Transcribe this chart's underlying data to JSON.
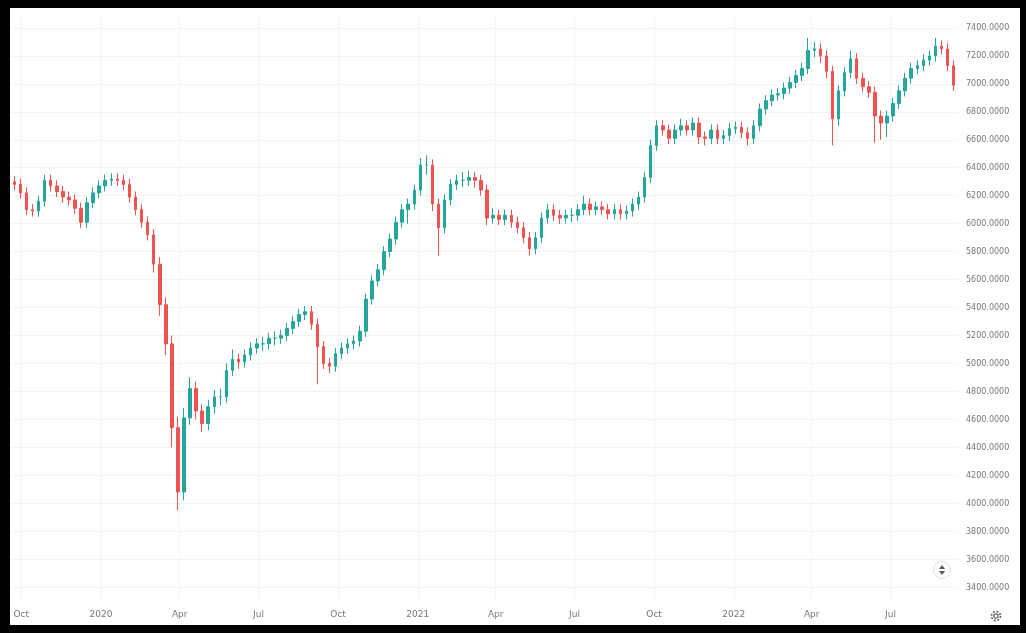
{
  "chart_data": {
    "type": "candlestick",
    "x": [
      "2019-09-23",
      "2019-09-30",
      "2019-10-07",
      "2019-10-14",
      "2019-10-21",
      "2019-10-28",
      "2019-11-04",
      "2019-11-11",
      "2019-11-18",
      "2019-11-25",
      "2019-12-02",
      "2019-12-09",
      "2019-12-16",
      "2019-12-23",
      "2019-12-30",
      "2020-01-06",
      "2020-01-13",
      "2020-01-20",
      "2020-01-27",
      "2020-02-03",
      "2020-02-10",
      "2020-02-17",
      "2020-02-24",
      "2020-03-02",
      "2020-03-09",
      "2020-03-16",
      "2020-03-23",
      "2020-03-30",
      "2020-04-06",
      "2020-04-13",
      "2020-04-20",
      "2020-04-27",
      "2020-05-04",
      "2020-05-11",
      "2020-05-18",
      "2020-05-25",
      "2020-06-01",
      "2020-06-08",
      "2020-06-15",
      "2020-06-22",
      "2020-06-29",
      "2020-07-06",
      "2020-07-13",
      "2020-07-20",
      "2020-07-27",
      "2020-08-03",
      "2020-08-10",
      "2020-08-17",
      "2020-08-24",
      "2020-08-31",
      "2020-09-07",
      "2020-09-14",
      "2020-09-21",
      "2020-09-28",
      "2020-10-05",
      "2020-10-12",
      "2020-10-19",
      "2020-10-26",
      "2020-11-02",
      "2020-11-09",
      "2020-11-16",
      "2020-11-23",
      "2020-11-30",
      "2020-12-07",
      "2020-12-14",
      "2020-12-21",
      "2020-12-28",
      "2021-01-04",
      "2021-01-11",
      "2021-01-18",
      "2021-01-25",
      "2021-02-01",
      "2021-02-08",
      "2021-02-15",
      "2021-02-22",
      "2021-03-01",
      "2021-03-08",
      "2021-03-15",
      "2021-03-22",
      "2021-03-29",
      "2021-04-05",
      "2021-04-12",
      "2021-04-19",
      "2021-04-26",
      "2021-05-03",
      "2021-05-10",
      "2021-05-17",
      "2021-05-24",
      "2021-05-31",
      "2021-06-07",
      "2021-06-14",
      "2021-06-21",
      "2021-06-28",
      "2021-07-05",
      "2021-07-12",
      "2021-07-19",
      "2021-07-26",
      "2021-08-02",
      "2021-08-09",
      "2021-08-16",
      "2021-08-23",
      "2021-08-30",
      "2021-09-06",
      "2021-09-13",
      "2021-09-20",
      "2021-09-27",
      "2021-10-04",
      "2021-10-11",
      "2021-10-18",
      "2021-10-25",
      "2021-11-01",
      "2021-11-08",
      "2021-11-15",
      "2021-11-22",
      "2021-11-29",
      "2021-12-06",
      "2021-12-13",
      "2021-12-20",
      "2021-12-27",
      "2022-01-03",
      "2022-01-10",
      "2022-01-17",
      "2022-01-24",
      "2022-01-31",
      "2022-02-07",
      "2022-02-14",
      "2022-02-21",
      "2022-02-28",
      "2022-03-07",
      "2022-03-14",
      "2022-03-21",
      "2022-03-28",
      "2022-04-04",
      "2022-04-11",
      "2022-04-18",
      "2022-04-25",
      "2022-05-02",
      "2022-05-09",
      "2022-05-16",
      "2022-05-23",
      "2022-05-30",
      "2022-06-06",
      "2022-06-13",
      "2022-06-20",
      "2022-06-27",
      "2022-07-04",
      "2022-07-11",
      "2022-07-18",
      "2022-07-25",
      "2022-08-01",
      "2022-08-08",
      "2022-08-15",
      "2022-08-22",
      "2022-08-29",
      "2022-09-05",
      "2022-09-12"
    ],
    "ohlc": [
      [
        6300,
        6340,
        6240,
        6280
      ],
      [
        6280,
        6320,
        6180,
        6220
      ],
      [
        6220,
        6260,
        6060,
        6100
      ],
      [
        6100,
        6140,
        6050,
        6090
      ],
      [
        6090,
        6200,
        6050,
        6160
      ],
      [
        6160,
        6350,
        6120,
        6310
      ],
      [
        6310,
        6350,
        6230,
        6270
      ],
      [
        6270,
        6310,
        6190,
        6230
      ],
      [
        6230,
        6270,
        6150,
        6190
      ],
      [
        6190,
        6230,
        6130,
        6170
      ],
      [
        6170,
        6210,
        6070,
        6110
      ],
      [
        6110,
        6150,
        5970,
        6010
      ],
      [
        6010,
        6190,
        5970,
        6150
      ],
      [
        6150,
        6260,
        6110,
        6220
      ],
      [
        6220,
        6310,
        6180,
        6270
      ],
      [
        6270,
        6350,
        6230,
        6310
      ],
      [
        6310,
        6360,
        6270,
        6320
      ],
      [
        6320,
        6360,
        6270,
        6310
      ],
      [
        6310,
        6350,
        6240,
        6280
      ],
      [
        6280,
        6320,
        6150,
        6190
      ],
      [
        6190,
        6230,
        6060,
        6100
      ],
      [
        6100,
        6140,
        5970,
        6010
      ],
      [
        6010,
        6050,
        5880,
        5920
      ],
      [
        5920,
        5960,
        5650,
        5710
      ],
      [
        5710,
        5760,
        5340,
        5420
      ],
      [
        5420,
        5470,
        5060,
        5140
      ],
      [
        5140,
        5200,
        4400,
        4540
      ],
      [
        4540,
        4620,
        3950,
        4080
      ],
      [
        4080,
        4680,
        4020,
        4610
      ],
      [
        4610,
        4900,
        4560,
        4820
      ],
      [
        4820,
        4870,
        4600,
        4660
      ],
      [
        4660,
        4710,
        4510,
        4570
      ],
      [
        4570,
        4740,
        4520,
        4690
      ],
      [
        4690,
        4810,
        4640,
        4760
      ],
      [
        4760,
        4820,
        4700,
        4760
      ],
      [
        4760,
        5000,
        4720,
        4950
      ],
      [
        4950,
        5100,
        4910,
        5030
      ],
      [
        5030,
        5070,
        4960,
        5010
      ],
      [
        5010,
        5100,
        4970,
        5060
      ],
      [
        5060,
        5150,
        5020,
        5110
      ],
      [
        5110,
        5180,
        5070,
        5140
      ],
      [
        5140,
        5190,
        5090,
        5140
      ],
      [
        5140,
        5220,
        5100,
        5180
      ],
      [
        5180,
        5230,
        5130,
        5180
      ],
      [
        5180,
        5240,
        5140,
        5200
      ],
      [
        5200,
        5290,
        5160,
        5250
      ],
      [
        5250,
        5340,
        5210,
        5300
      ],
      [
        5300,
        5390,
        5260,
        5350
      ],
      [
        5350,
        5410,
        5310,
        5370
      ],
      [
        5370,
        5410,
        5240,
        5280
      ],
      [
        5280,
        5320,
        4850,
        5120
      ],
      [
        5120,
        5160,
        4960,
        5000
      ],
      [
        5000,
        5040,
        4930,
        4980
      ],
      [
        4980,
        5110,
        4940,
        5070
      ],
      [
        5070,
        5150,
        5030,
        5110
      ],
      [
        5110,
        5180,
        5070,
        5140
      ],
      [
        5140,
        5200,
        5100,
        5160
      ],
      [
        5160,
        5270,
        5120,
        5230
      ],
      [
        5230,
        5500,
        5190,
        5460
      ],
      [
        5460,
        5630,
        5420,
        5590
      ],
      [
        5590,
        5710,
        5550,
        5670
      ],
      [
        5670,
        5840,
        5630,
        5800
      ],
      [
        5800,
        5930,
        5760,
        5890
      ],
      [
        5890,
        6050,
        5850,
        6010
      ],
      [
        6010,
        6140,
        5970,
        6100
      ],
      [
        6100,
        6180,
        6000,
        6140
      ],
      [
        6140,
        6280,
        6100,
        6240
      ],
      [
        6240,
        6470,
        6200,
        6420
      ],
      [
        6420,
        6490,
        6350,
        6420
      ],
      [
        6420,
        6460,
        6090,
        6140
      ],
      [
        6140,
        6180,
        5770,
        5970
      ],
      [
        5970,
        6210,
        5930,
        6170
      ],
      [
        6170,
        6320,
        6130,
        6280
      ],
      [
        6280,
        6350,
        6240,
        6310
      ],
      [
        6310,
        6370,
        6260,
        6310
      ],
      [
        6310,
        6380,
        6270,
        6330
      ],
      [
        6330,
        6370,
        6260,
        6310
      ],
      [
        6310,
        6350,
        6200,
        6240
      ],
      [
        6240,
        6280,
        5990,
        6040
      ],
      [
        6040,
        6110,
        6000,
        6060
      ],
      [
        6060,
        6100,
        5990,
        6030
      ],
      [
        6030,
        6100,
        5990,
        6060
      ],
      [
        6060,
        6100,
        5970,
        6010
      ],
      [
        6010,
        6050,
        5930,
        5970
      ],
      [
        5970,
        6010,
        5860,
        5900
      ],
      [
        5900,
        5940,
        5770,
        5820
      ],
      [
        5820,
        5940,
        5780,
        5900
      ],
      [
        5900,
        6080,
        5860,
        6040
      ],
      [
        6040,
        6140,
        6000,
        6100
      ],
      [
        6100,
        6140,
        6020,
        6060
      ],
      [
        6060,
        6100,
        6000,
        6040
      ],
      [
        6040,
        6100,
        6000,
        6060
      ],
      [
        6060,
        6110,
        6010,
        6060
      ],
      [
        6060,
        6140,
        6020,
        6100
      ],
      [
        6100,
        6200,
        6060,
        6140
      ],
      [
        6140,
        6180,
        6060,
        6100
      ],
      [
        6100,
        6160,
        6060,
        6120
      ],
      [
        6120,
        6160,
        6060,
        6100
      ],
      [
        6100,
        6140,
        6030,
        6070
      ],
      [
        6070,
        6140,
        6030,
        6100
      ],
      [
        6100,
        6140,
        6030,
        6070
      ],
      [
        6070,
        6130,
        6030,
        6090
      ],
      [
        6090,
        6180,
        6050,
        6140
      ],
      [
        6140,
        6230,
        6100,
        6190
      ],
      [
        6190,
        6370,
        6150,
        6330
      ],
      [
        6330,
        6600,
        6290,
        6560
      ],
      [
        6560,
        6740,
        6520,
        6700
      ],
      [
        6700,
        6740,
        6630,
        6670
      ],
      [
        6670,
        6710,
        6570,
        6610
      ],
      [
        6610,
        6710,
        6570,
        6670
      ],
      [
        6670,
        6750,
        6630,
        6700
      ],
      [
        6700,
        6740,
        6630,
        6670
      ],
      [
        6670,
        6760,
        6630,
        6720
      ],
      [
        6720,
        6760,
        6570,
        6620
      ],
      [
        6620,
        6660,
        6560,
        6610
      ],
      [
        6610,
        6710,
        6570,
        6670
      ],
      [
        6670,
        6710,
        6570,
        6610
      ],
      [
        6610,
        6670,
        6570,
        6630
      ],
      [
        6630,
        6720,
        6590,
        6680
      ],
      [
        6680,
        6730,
        6640,
        6690
      ],
      [
        6690,
        6730,
        6610,
        6650
      ],
      [
        6650,
        6690,
        6560,
        6610
      ],
      [
        6610,
        6740,
        6570,
        6700
      ],
      [
        6700,
        6860,
        6660,
        6820
      ],
      [
        6820,
        6920,
        6780,
        6880
      ],
      [
        6880,
        6960,
        6840,
        6920
      ],
      [
        6920,
        6970,
        6880,
        6930
      ],
      [
        6930,
        7010,
        6890,
        6970
      ],
      [
        6970,
        7050,
        6930,
        7010
      ],
      [
        7010,
        7100,
        6970,
        7060
      ],
      [
        7060,
        7150,
        7020,
        7110
      ],
      [
        7110,
        7330,
        7070,
        7240
      ],
      [
        7240,
        7300,
        7190,
        7250
      ],
      [
        7250,
        7290,
        7150,
        7200
      ],
      [
        7200,
        7240,
        7040,
        7090
      ],
      [
        7090,
        7130,
        6560,
        6750
      ],
      [
        6750,
        6990,
        6700,
        6950
      ],
      [
        6950,
        7120,
        6910,
        7080
      ],
      [
        7080,
        7240,
        7040,
        7180
      ],
      [
        7180,
        7220,
        7000,
        7040
      ],
      [
        7040,
        7080,
        6940,
        6980
      ],
      [
        6980,
        7020,
        6900,
        6940
      ],
      [
        6940,
        6980,
        6580,
        6770
      ],
      [
        6770,
        6810,
        6600,
        6720
      ],
      [
        6720,
        6810,
        6620,
        6770
      ],
      [
        6770,
        6900,
        6730,
        6860
      ],
      [
        6860,
        6990,
        6820,
        6950
      ],
      [
        6950,
        7080,
        6910,
        7040
      ],
      [
        7040,
        7150,
        7000,
        7110
      ],
      [
        7110,
        7170,
        7070,
        7130
      ],
      [
        7130,
        7210,
        7090,
        7170
      ],
      [
        7170,
        7240,
        7130,
        7200
      ],
      [
        7200,
        7330,
        7160,
        7270
      ],
      [
        7270,
        7310,
        7210,
        7250
      ],
      [
        7250,
        7290,
        7090,
        7130
      ],
      [
        7130,
        7170,
        6950,
        6990
      ]
    ],
    "colors": [
      "#ef5350",
      "#ef5350",
      "#ef5350",
      "#ef5350",
      "#26a69a",
      "#26a69a",
      "#ef5350",
      "#ef5350",
      "#ef5350",
      "#ef5350",
      "#ef5350",
      "#ef5350",
      "#26a69a",
      "#26a69a",
      "#26a69a",
      "#26a69a",
      "#26a69a",
      "#ef5350",
      "#ef5350",
      "#ef5350",
      "#ef5350",
      "#ef5350",
      "#ef5350",
      "#ef5350",
      "#ef5350",
      "#ef5350",
      "#ef5350",
      "#ef5350",
      "#26a69a",
      "#26a69a",
      "#ef5350",
      "#ef5350",
      "#26a69a",
      "#26a69a",
      "#26a69a",
      "#26a69a",
      "#26a69a",
      "#ef5350",
      "#26a69a",
      "#26a69a",
      "#26a69a",
      "#26a69a",
      "#26a69a",
      "#26a69a",
      "#26a69a",
      "#26a69a",
      "#26a69a",
      "#26a69a",
      "#26a69a",
      "#ef5350",
      "#ef5350",
      "#ef5350",
      "#ef5350",
      "#26a69a",
      "#26a69a",
      "#26a69a",
      "#26a69a",
      "#26a69a",
      "#26a69a",
      "#26a69a",
      "#26a69a",
      "#26a69a",
      "#26a69a",
      "#26a69a",
      "#26a69a",
      "#26a69a",
      "#26a69a",
      "#26a69a",
      "#26a69a",
      "#ef5350",
      "#ef5350",
      "#26a69a",
      "#26a69a",
      "#26a69a",
      "#26a69a",
      "#26a69a",
      "#ef5350",
      "#ef5350",
      "#ef5350",
      "#26a69a",
      "#ef5350",
      "#26a69a",
      "#ef5350",
      "#ef5350",
      "#ef5350",
      "#ef5350",
      "#26a69a",
      "#26a69a",
      "#26a69a",
      "#ef5350",
      "#ef5350",
      "#26a69a",
      "#26a69a",
      "#26a69a",
      "#26a69a",
      "#ef5350",
      "#26a69a",
      "#ef5350",
      "#ef5350",
      "#26a69a",
      "#ef5350",
      "#26a69a",
      "#26a69a",
      "#26a69a",
      "#26a69a",
      "#26a69a",
      "#26a69a",
      "#ef5350",
      "#ef5350",
      "#26a69a",
      "#26a69a",
      "#ef5350",
      "#26a69a",
      "#ef5350",
      "#ef5350",
      "#26a69a",
      "#ef5350",
      "#26a69a",
      "#26a69a",
      "#26a69a",
      "#ef5350",
      "#ef5350",
      "#26a69a",
      "#26a69a",
      "#26a69a",
      "#26a69a",
      "#26a69a",
      "#26a69a",
      "#26a69a",
      "#26a69a",
      "#26a69a",
      "#26a69a",
      "#26a69a",
      "#ef5350",
      "#ef5350",
      "#ef5350",
      "#26a69a",
      "#26a69a",
      "#26a69a",
      "#ef5350",
      "#ef5350",
      "#ef5350",
      "#ef5350",
      "#ef5350",
      "#26a69a",
      "#26a69a",
      "#26a69a",
      "#26a69a",
      "#26a69a",
      "#26a69a",
      "#26a69a",
      "#26a69a",
      "#26a69a",
      "#ef5350",
      "#ef5350",
      "#ef5350"
    ],
    "xlim": [
      "2019-09-18",
      "2022-09-17"
    ],
    "xticks": [
      {
        "value": "2019-10-01",
        "label": "Oct"
      },
      {
        "value": "2020-01-01",
        "label": "2020"
      },
      {
        "value": "2020-04-01",
        "label": "Apr"
      },
      {
        "value": "2020-07-01",
        "label": "Jul"
      },
      {
        "value": "2020-10-01",
        "label": "Oct"
      },
      {
        "value": "2021-01-01",
        "label": "2021"
      },
      {
        "value": "2021-04-01",
        "label": "Apr"
      },
      {
        "value": "2021-07-01",
        "label": "Jul"
      },
      {
        "value": "2021-10-01",
        "label": "Oct"
      },
      {
        "value": "2022-01-01",
        "label": "2022"
      },
      {
        "value": "2022-04-01",
        "label": "Apr"
      },
      {
        "value": "2022-07-01",
        "label": "Jul"
      }
    ],
    "ylim": [
      3300,
      7500
    ],
    "yticks": [
      {
        "value": 3400,
        "label": "3400.0000"
      },
      {
        "value": 3600,
        "label": "3600.0000"
      },
      {
        "value": 3800,
        "label": "3800.0000"
      },
      {
        "value": 4000,
        "label": "4000.0000"
      },
      {
        "value": 4200,
        "label": "4200.0000"
      },
      {
        "value": 4400,
        "label": "4400.0000"
      },
      {
        "value": 4600,
        "label": "4600.0000"
      },
      {
        "value": 4800,
        "label": "4800.0000"
      },
      {
        "value": 5000,
        "label": "5000.0000"
      },
      {
        "value": 5200,
        "label": "5200.0000"
      },
      {
        "value": 5400,
        "label": "5400.0000"
      },
      {
        "value": 5600,
        "label": "5600.0000"
      },
      {
        "value": 5800,
        "label": "5800.0000"
      },
      {
        "value": 6000,
        "label": "6000.0000"
      },
      {
        "value": 6200,
        "label": "6200.0000"
      },
      {
        "value": 6400,
        "label": "6400.0000"
      },
      {
        "value": 6600,
        "label": "6600.0000"
      },
      {
        "value": 6800,
        "label": "6800.0000"
      },
      {
        "value": 7000,
        "label": "7000.0000"
      },
      {
        "value": 7200,
        "label": "7200.0000"
      },
      {
        "value": 7400,
        "label": "7400.0000"
      }
    ],
    "grid": true
  }
}
